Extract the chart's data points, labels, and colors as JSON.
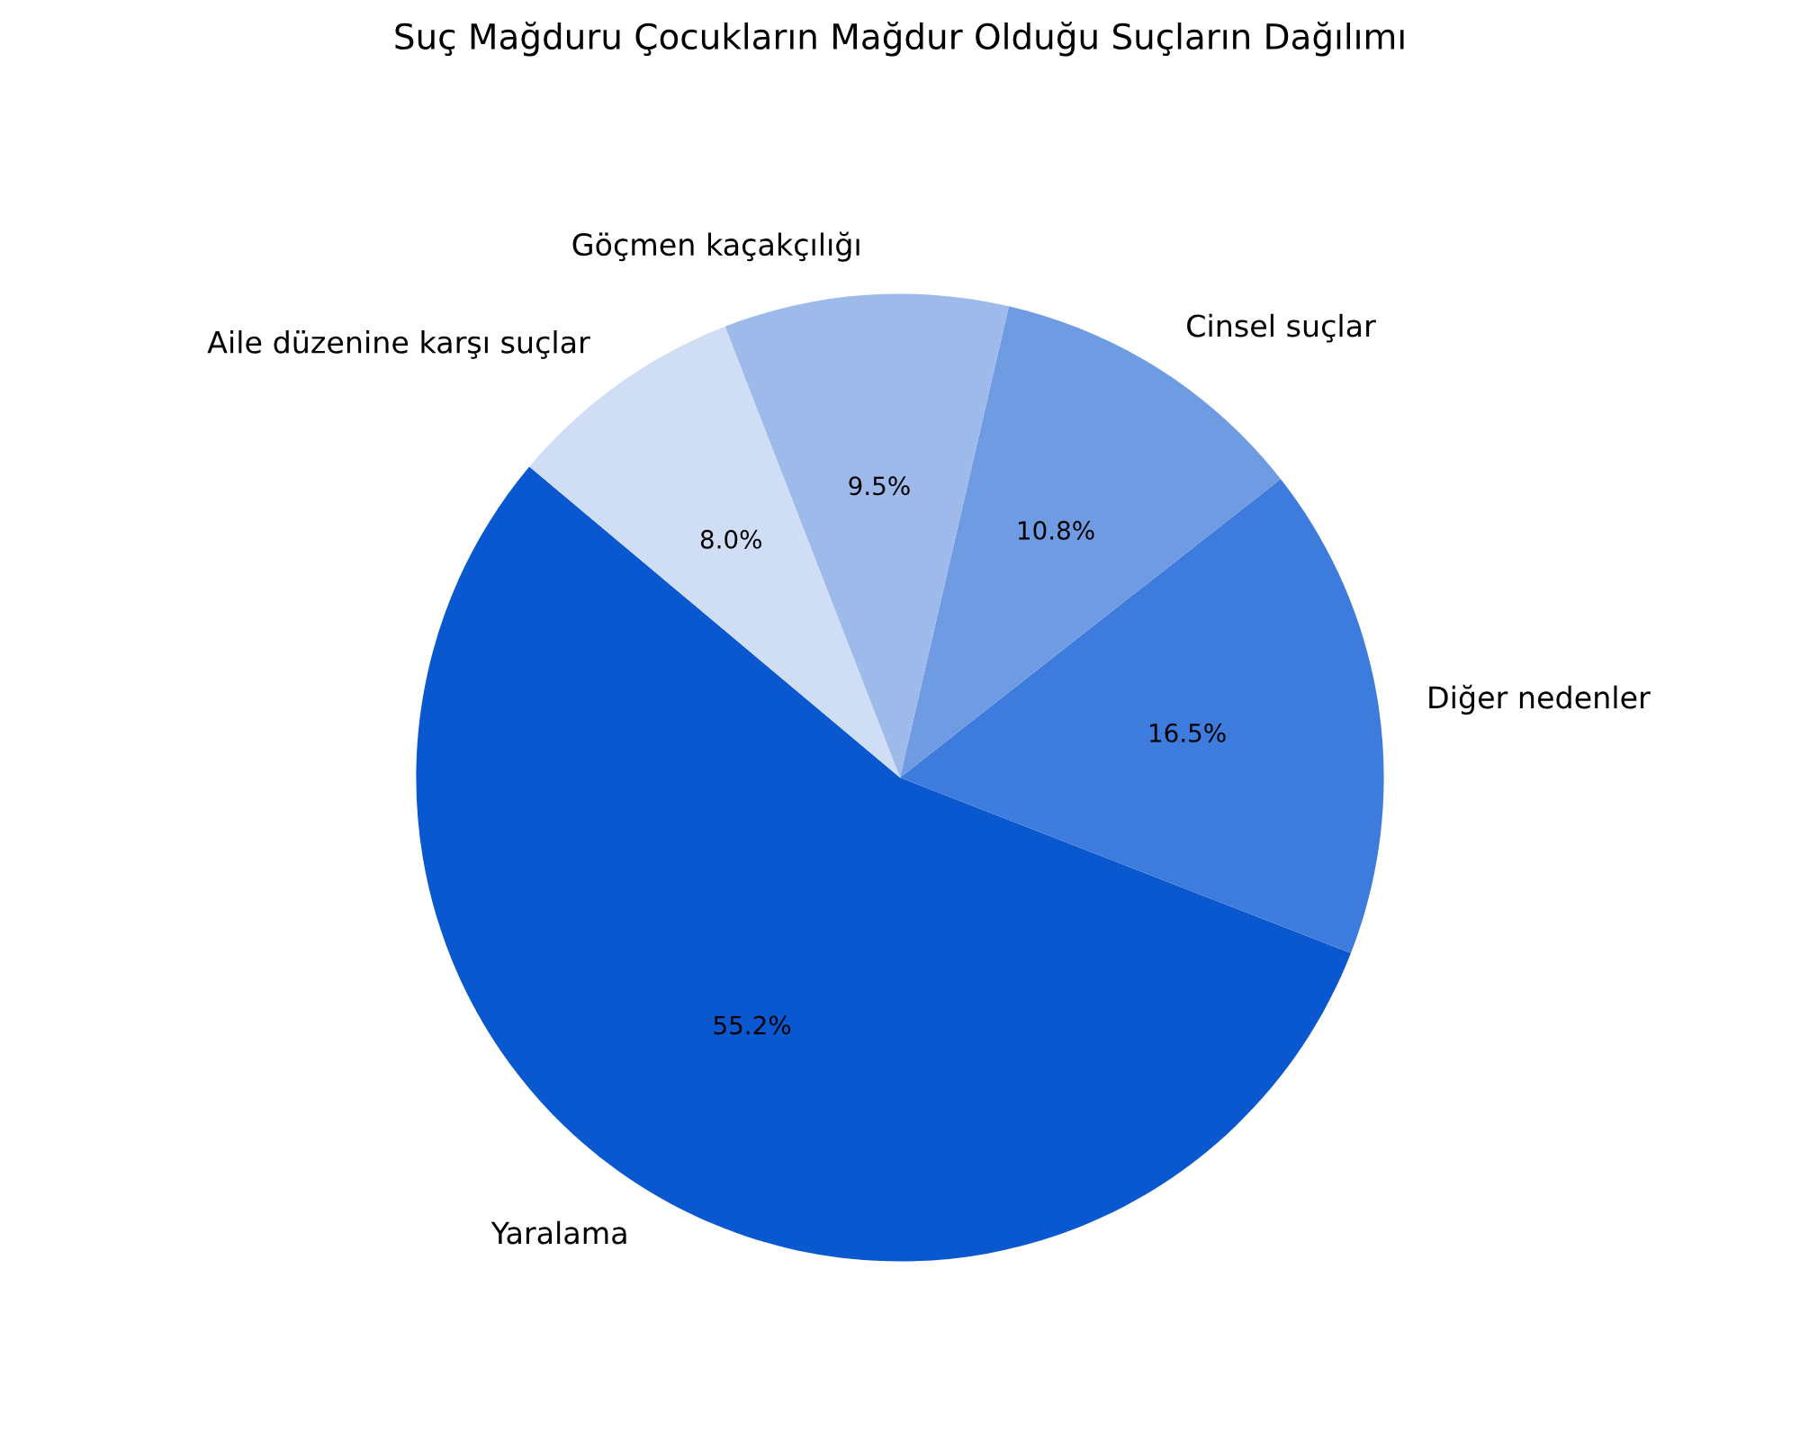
{
  "chart_data": {
    "type": "pie",
    "title": "Suç Mağduru Çocukların Mağdur Olduğu Suçların Dağılımı",
    "categories": [
      "Yaralama",
      "Diğer nedenler",
      "Cinsel suçlar",
      "Göçmen kaçakçılığı",
      "Aile düzenine karşı suçlar"
    ],
    "values": [
      55.2,
      16.5,
      10.8,
      9.5,
      8.0
    ],
    "value_labels": [
      "55.2%",
      "16.5%",
      "10.8%",
      "9.5%",
      "8.0%"
    ],
    "colors": [
      "#0a58d0",
      "#3d7bdc",
      "#6f9be3",
      "#9dbaeb",
      "#cfddf5"
    ]
  }
}
